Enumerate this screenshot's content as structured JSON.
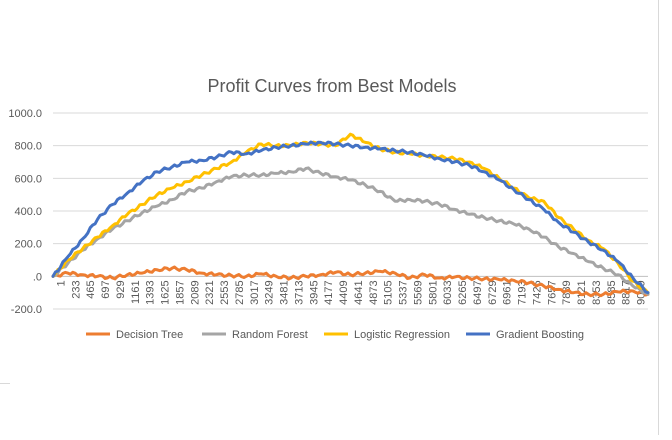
{
  "chart_data": {
    "type": "line",
    "title": "Profit Curves from Best Models",
    "xlabel": "",
    "ylabel": "",
    "ylim": [
      -200,
      1000
    ],
    "yticks": [
      -200,
      0,
      200,
      400,
      600,
      800,
      1000
    ],
    "ytick_labels": [
      "-200.0",
      ".0",
      "200.0",
      "400.0",
      "600.0",
      "800.0",
      "1000.0"
    ],
    "xlim": [
      1,
      9283
    ],
    "xtick_labels": [
      "1",
      "233",
      "465",
      "697",
      "929",
      "1161",
      "1393",
      "1625",
      "1857",
      "2089",
      "2321",
      "2553",
      "2785",
      "3017",
      "3249",
      "3481",
      "3713",
      "3945",
      "4177",
      "4409",
      "4641",
      "4873",
      "5105",
      "5337",
      "5569",
      "5801",
      "6033",
      "6265",
      "6497",
      "6729",
      "6961",
      "7193",
      "7425",
      "7657",
      "7889",
      "8121",
      "8353",
      "8585",
      "8817",
      "9049"
    ],
    "grid": "horizontal",
    "legend_position": "bottom",
    "series": [
      {
        "name": "Decision Tree",
        "color": "#ED7D31",
        "x": [
          1,
          233,
          465,
          697,
          929,
          1161,
          1393,
          1625,
          1857,
          2089,
          2321,
          2553,
          2785,
          3017,
          3249,
          3481,
          3713,
          3945,
          4177,
          4409,
          4641,
          4873,
          5105,
          5337,
          5569,
          5801,
          6033,
          6265,
          6497,
          6729,
          6961,
          7193,
          7425,
          7657,
          7889,
          8121,
          8353,
          8585,
          8817,
          9049,
          9283
        ],
        "values": [
          0,
          20,
          10,
          0,
          -10,
          10,
          20,
          40,
          50,
          40,
          20,
          10,
          5,
          0,
          15,
          0,
          -10,
          0,
          10,
          25,
          10,
          20,
          30,
          20,
          -10,
          10,
          -10,
          -5,
          -10,
          -15,
          -20,
          -25,
          -40,
          -60,
          -80,
          -100,
          -110,
          -110,
          -95,
          -90,
          -110
        ]
      },
      {
        "name": "Random Forest",
        "color": "#A5A5A5",
        "x": [
          1,
          233,
          465,
          697,
          929,
          1161,
          1393,
          1625,
          1857,
          2089,
          2321,
          2553,
          2785,
          3017,
          3249,
          3481,
          3713,
          3945,
          4177,
          4409,
          4641,
          4873,
          5105,
          5337,
          5569,
          5801,
          6033,
          6265,
          6497,
          6729,
          6961,
          7193,
          7425,
          7657,
          7889,
          8121,
          8353,
          8585,
          8817,
          9049,
          9283
        ],
        "values": [
          0,
          80,
          160,
          230,
          290,
          340,
          390,
          430,
          470,
          520,
          540,
          580,
          610,
          620,
          620,
          630,
          640,
          660,
          630,
          610,
          590,
          560,
          520,
          460,
          470,
          460,
          440,
          410,
          380,
          360,
          340,
          320,
          290,
          240,
          180,
          140,
          90,
          50,
          10,
          -60,
          -110
        ]
      },
      {
        "name": "Logistic Regression",
        "color": "#FFC000",
        "x": [
          1,
          233,
          465,
          697,
          929,
          1161,
          1393,
          1625,
          1857,
          2089,
          2321,
          2553,
          2785,
          3017,
          3249,
          3481,
          3713,
          3945,
          4177,
          4409,
          4641,
          4873,
          5105,
          5337,
          5569,
          5801,
          6033,
          6265,
          6497,
          6729,
          6961,
          7193,
          7425,
          7657,
          7889,
          8121,
          8353,
          8585,
          8817,
          9049,
          9283
        ],
        "values": [
          0,
          100,
          170,
          240,
          310,
          380,
          440,
          500,
          540,
          580,
          620,
          660,
          700,
          760,
          810,
          800,
          800,
          820,
          810,
          800,
          870,
          820,
          780,
          760,
          750,
          740,
          730,
          720,
          700,
          660,
          600,
          540,
          480,
          460,
          360,
          290,
          220,
          170,
          80,
          -30,
          -100
        ]
      },
      {
        "name": "Gradient Boosting",
        "color": "#4472C4",
        "x": [
          1,
          233,
          465,
          697,
          929,
          1161,
          1393,
          1625,
          1857,
          2089,
          2321,
          2553,
          2785,
          3017,
          3249,
          3481,
          3713,
          3945,
          4177,
          4409,
          4641,
          4873,
          5105,
          5337,
          5569,
          5801,
          6033,
          6265,
          6497,
          6729,
          6961,
          7193,
          7425,
          7657,
          7889,
          8121,
          8353,
          8585,
          8817,
          9049,
          9283
        ],
        "values": [
          0,
          120,
          230,
          350,
          440,
          510,
          580,
          640,
          670,
          700,
          710,
          730,
          760,
          750,
          770,
          790,
          800,
          810,
          820,
          810,
          800,
          790,
          780,
          770,
          760,
          740,
          720,
          700,
          680,
          640,
          590,
          530,
          470,
          410,
          330,
          270,
          210,
          160,
          90,
          -10,
          -100
        ]
      }
    ]
  }
}
